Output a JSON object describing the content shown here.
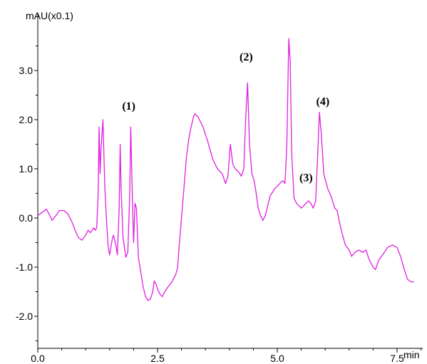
{
  "chart_data": {
    "type": "line",
    "title": "",
    "xlabel": "",
    "ylabel": "",
    "x_unit": "min",
    "y_unit": "mAU(x0.1)",
    "xlim": [
      0,
      8.3
    ],
    "ylim": [
      -2.6,
      3.9
    ],
    "grid": false,
    "legend": "none",
    "line_color": "#e01ee0",
    "x_ticks": [
      {
        "value": 0.0,
        "label": "0.0"
      },
      {
        "value": 2.5,
        "label": "2.5"
      },
      {
        "value": 5.0,
        "label": "5.0"
      },
      {
        "value": 7.5,
        "label": "7.5"
      }
    ],
    "y_ticks": [
      {
        "value": 3.0,
        "label": "3.0"
      },
      {
        "value": 2.0,
        "label": "2.0"
      },
      {
        "value": 1.0,
        "label": "1.0"
      },
      {
        "value": 0.0,
        "label": "0.0"
      },
      {
        "value": -1.0,
        "label": "-1.0"
      },
      {
        "value": -2.0,
        "label": "-2.0"
      }
    ],
    "annotations": [
      {
        "text": "(1)",
        "x": 1.9,
        "y": 2.2
      },
      {
        "text": "(2)",
        "x": 4.35,
        "y": 3.2
      },
      {
        "text": "(3)",
        "x": 5.6,
        "y": 0.75
      },
      {
        "text": "(4)",
        "x": 5.95,
        "y": 2.3
      }
    ],
    "series": [
      {
        "points": [
          [
            0.0,
            0.05
          ],
          [
            0.1,
            0.12
          ],
          [
            0.18,
            0.18
          ],
          [
            0.25,
            0.05
          ],
          [
            0.3,
            -0.05
          ],
          [
            0.38,
            0.05
          ],
          [
            0.45,
            0.15
          ],
          [
            0.55,
            0.15
          ],
          [
            0.63,
            0.08
          ],
          [
            0.7,
            -0.05
          ],
          [
            0.78,
            -0.25
          ],
          [
            0.85,
            -0.4
          ],
          [
            0.92,
            -0.45
          ],
          [
            1.0,
            -0.35
          ],
          [
            1.05,
            -0.25
          ],
          [
            1.1,
            -0.3
          ],
          [
            1.17,
            -0.2
          ],
          [
            1.2,
            -0.25
          ],
          [
            1.23,
            -0.2
          ],
          [
            1.26,
            0.5
          ],
          [
            1.28,
            1.85
          ],
          [
            1.3,
            0.9
          ],
          [
            1.32,
            1.4
          ],
          [
            1.36,
            2.0
          ],
          [
            1.4,
            0.6
          ],
          [
            1.44,
            -0.15
          ],
          [
            1.47,
            -0.6
          ],
          [
            1.5,
            -0.75
          ],
          [
            1.55,
            -0.45
          ],
          [
            1.58,
            -0.35
          ],
          [
            1.63,
            -0.55
          ],
          [
            1.66,
            -0.75
          ],
          [
            1.7,
            0.2
          ],
          [
            1.72,
            1.5
          ],
          [
            1.74,
            0.6
          ],
          [
            1.78,
            -0.4
          ],
          [
            1.84,
            -0.8
          ],
          [
            1.88,
            -0.7
          ],
          [
            1.92,
            0.5
          ],
          [
            1.94,
            1.85
          ],
          [
            1.97,
            0.6
          ],
          [
            2.0,
            -0.5
          ],
          [
            2.03,
            0.3
          ],
          [
            2.06,
            0.2
          ],
          [
            2.1,
            -0.8
          ],
          [
            2.15,
            -1.1
          ],
          [
            2.2,
            -1.4
          ],
          [
            2.25,
            -1.6
          ],
          [
            2.3,
            -1.68
          ],
          [
            2.35,
            -1.65
          ],
          [
            2.4,
            -1.5
          ],
          [
            2.43,
            -1.28
          ],
          [
            2.47,
            -1.35
          ],
          [
            2.5,
            -1.45
          ],
          [
            2.55,
            -1.55
          ],
          [
            2.6,
            -1.6
          ],
          [
            2.65,
            -1.5
          ],
          [
            2.72,
            -1.4
          ],
          [
            2.8,
            -1.3
          ],
          [
            2.88,
            -1.15
          ],
          [
            2.92,
            -1.0
          ],
          [
            2.95,
            -0.6
          ],
          [
            3.0,
            0.0
          ],
          [
            3.05,
            0.6
          ],
          [
            3.1,
            1.2
          ],
          [
            3.15,
            1.6
          ],
          [
            3.2,
            1.85
          ],
          [
            3.25,
            2.05
          ],
          [
            3.28,
            2.12
          ],
          [
            3.35,
            2.05
          ],
          [
            3.45,
            1.85
          ],
          [
            3.55,
            1.55
          ],
          [
            3.65,
            1.2
          ],
          [
            3.75,
            1.0
          ],
          [
            3.85,
            0.9
          ],
          [
            3.92,
            0.7
          ],
          [
            3.97,
            0.85
          ],
          [
            4.02,
            1.5
          ],
          [
            4.07,
            1.1
          ],
          [
            4.12,
            1.0
          ],
          [
            4.18,
            0.95
          ],
          [
            4.25,
            0.85
          ],
          [
            4.3,
            1.0
          ],
          [
            4.34,
            2.0
          ],
          [
            4.38,
            2.75
          ],
          [
            4.42,
            1.5
          ],
          [
            4.47,
            0.9
          ],
          [
            4.52,
            0.75
          ],
          [
            4.56,
            0.5
          ],
          [
            4.6,
            0.2
          ],
          [
            4.65,
            0.05
          ],
          [
            4.7,
            -0.05
          ],
          [
            4.75,
            0.05
          ],
          [
            4.8,
            0.25
          ],
          [
            4.85,
            0.45
          ],
          [
            4.95,
            0.6
          ],
          [
            5.05,
            0.7
          ],
          [
            5.1,
            0.75
          ],
          [
            5.13,
            0.75
          ],
          [
            5.16,
            0.7
          ],
          [
            5.2,
            1.5
          ],
          [
            5.24,
            3.65
          ],
          [
            5.27,
            3.2
          ],
          [
            5.3,
            1.3
          ],
          [
            5.35,
            0.4
          ],
          [
            5.4,
            0.3
          ],
          [
            5.45,
            0.25
          ],
          [
            5.5,
            0.2
          ],
          [
            5.55,
            0.25
          ],
          [
            5.6,
            0.3
          ],
          [
            5.65,
            0.35
          ],
          [
            5.7,
            0.3
          ],
          [
            5.75,
            0.2
          ],
          [
            5.8,
            0.35
          ],
          [
            5.84,
            1.2
          ],
          [
            5.88,
            2.15
          ],
          [
            5.92,
            1.7
          ],
          [
            5.97,
            0.9
          ],
          [
            6.05,
            0.6
          ],
          [
            6.12,
            0.45
          ],
          [
            6.2,
            0.2
          ],
          [
            6.25,
            0.15
          ],
          [
            6.3,
            -0.1
          ],
          [
            6.35,
            -0.3
          ],
          [
            6.42,
            -0.55
          ],
          [
            6.5,
            -0.65
          ],
          [
            6.55,
            -0.78
          ],
          [
            6.62,
            -0.7
          ],
          [
            6.7,
            -0.65
          ],
          [
            6.78,
            -0.7
          ],
          [
            6.85,
            -0.65
          ],
          [
            6.92,
            -0.85
          ],
          [
            7.0,
            -1.0
          ],
          [
            7.05,
            -1.05
          ],
          [
            7.12,
            -0.85
          ],
          [
            7.2,
            -0.75
          ],
          [
            7.3,
            -0.6
          ],
          [
            7.4,
            -0.55
          ],
          [
            7.5,
            -0.6
          ],
          [
            7.58,
            -0.8
          ],
          [
            7.65,
            -1.05
          ],
          [
            7.72,
            -1.25
          ],
          [
            7.8,
            -1.3
          ],
          [
            7.85,
            -1.3
          ]
        ]
      }
    ]
  }
}
